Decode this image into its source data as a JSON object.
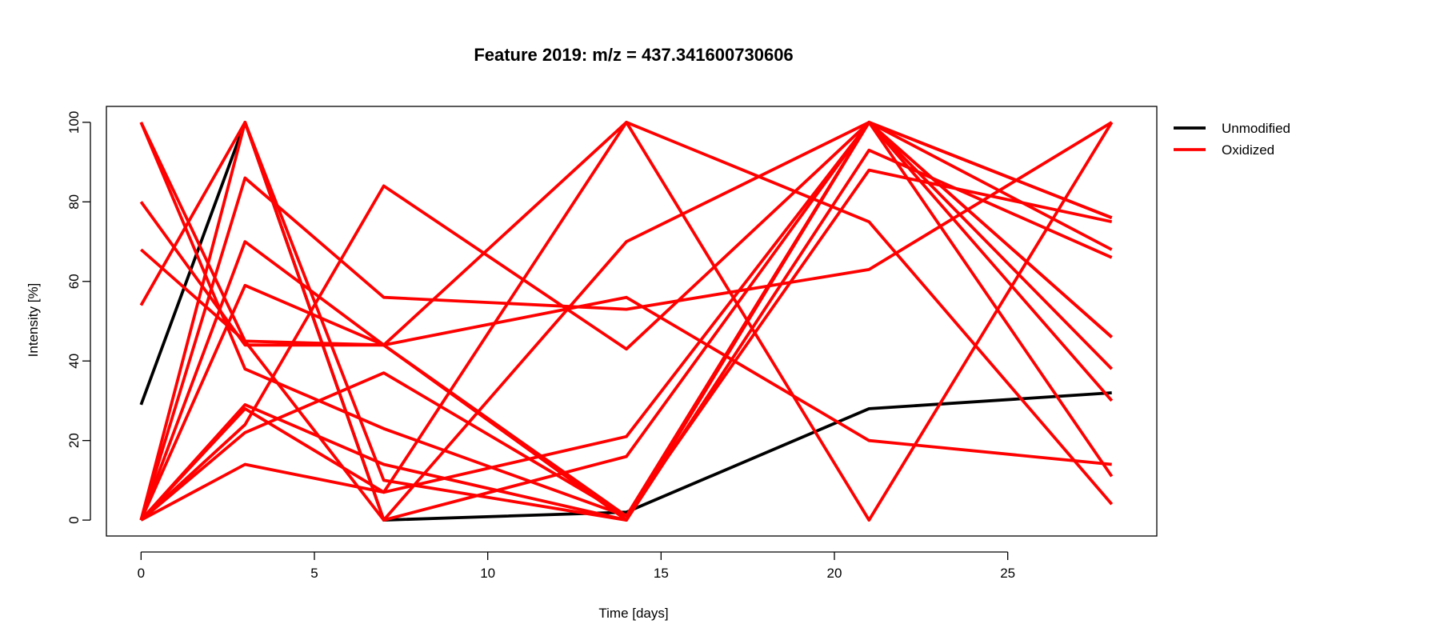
{
  "chart_data": {
    "type": "line",
    "title": "Feature 2019: m/z = 437.341600730606",
    "xlabel": "Time [days]",
    "ylabel": "Intensity [%]",
    "x": [
      0,
      3,
      7,
      14,
      21,
      28
    ],
    "xlim": [
      -1,
      29.3
    ],
    "ylim": [
      -4,
      104
    ],
    "xticks": [
      0,
      5,
      10,
      15,
      20,
      25
    ],
    "yticks": [
      0,
      20,
      40,
      60,
      80,
      100
    ],
    "grid": false,
    "legend_position": "top-right outside",
    "colors": {
      "Unmodified": "#000000",
      "Oxidized": "#ff0000"
    },
    "legend": [
      "Unmodified",
      "Oxidized"
    ],
    "series": [
      {
        "group": "Unmodified",
        "values": [
          29,
          100,
          0,
          2,
          28,
          32
        ]
      },
      {
        "group": "Oxidized",
        "values": [
          100,
          45,
          44,
          100,
          75,
          4
        ]
      },
      {
        "group": "Oxidized",
        "values": [
          100,
          38,
          23,
          1,
          100,
          76
        ]
      },
      {
        "group": "Oxidized",
        "values": [
          80,
          44,
          44,
          56,
          20,
          14
        ]
      },
      {
        "group": "Oxidized",
        "values": [
          68,
          45,
          0,
          70,
          100,
          30
        ]
      },
      {
        "group": "Oxidized",
        "values": [
          54,
          100,
          0,
          16,
          100,
          46
        ]
      },
      {
        "group": "Oxidized",
        "values": [
          0,
          100,
          10,
          0,
          100,
          38
        ]
      },
      {
        "group": "Oxidized",
        "values": [
          0,
          86,
          56,
          53,
          63,
          100
        ]
      },
      {
        "group": "Oxidized",
        "values": [
          0,
          70,
          44,
          0,
          100,
          76
        ]
      },
      {
        "group": "Oxidized",
        "values": [
          0,
          59,
          44,
          1,
          100,
          68
        ]
      },
      {
        "group": "Oxidized",
        "values": [
          0,
          29,
          14,
          0,
          93,
          66
        ]
      },
      {
        "group": "Oxidized",
        "values": [
          0,
          28,
          7,
          100,
          0,
          100
        ]
      },
      {
        "group": "Oxidized",
        "values": [
          0,
          22,
          37,
          1,
          88,
          75
        ]
      },
      {
        "group": "Oxidized",
        "values": [
          0,
          24,
          84,
          43,
          100,
          11
        ]
      },
      {
        "group": "Oxidized",
        "values": [
          0,
          14,
          7,
          21,
          100,
          46
        ]
      }
    ]
  }
}
